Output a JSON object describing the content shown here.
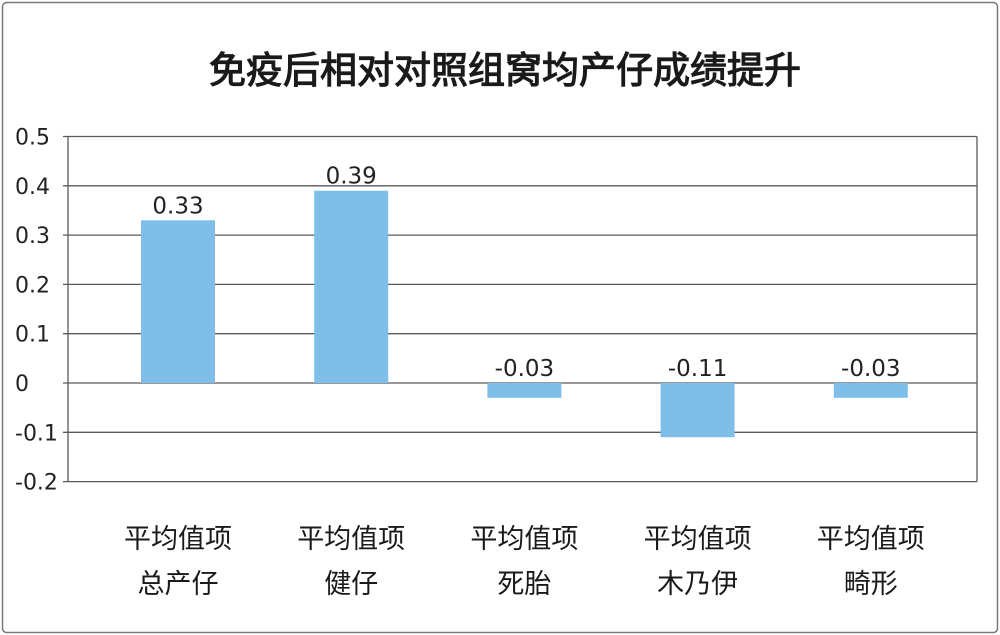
{
  "chart_data": {
    "type": "bar",
    "title": "免疫后相对对照组窝均产仔成绩提升",
    "categories": [
      [
        "平均值项",
        "总产仔"
      ],
      [
        "平均值项",
        "健仔"
      ],
      [
        "平均值项",
        "死胎"
      ],
      [
        "平均值项",
        "木乃伊"
      ],
      [
        "平均值项",
        "畸形"
      ]
    ],
    "values": [
      0.33,
      0.39,
      -0.03,
      -0.11,
      -0.03
    ],
    "value_labels": [
      "0.33",
      "0.39",
      "-0.03",
      "-0.11",
      "-0.03"
    ],
    "y_ticks": [
      "0.5",
      "0.4",
      "0.3",
      "0.2",
      "0.1",
      "0",
      "-0.1",
      "-0.2"
    ],
    "ylim": [
      -0.2,
      0.5
    ],
    "grid": true,
    "colors": {
      "bar": "#7FBEE8",
      "grid": "#5A5A5A",
      "frame": "#7A7A7A"
    }
  }
}
